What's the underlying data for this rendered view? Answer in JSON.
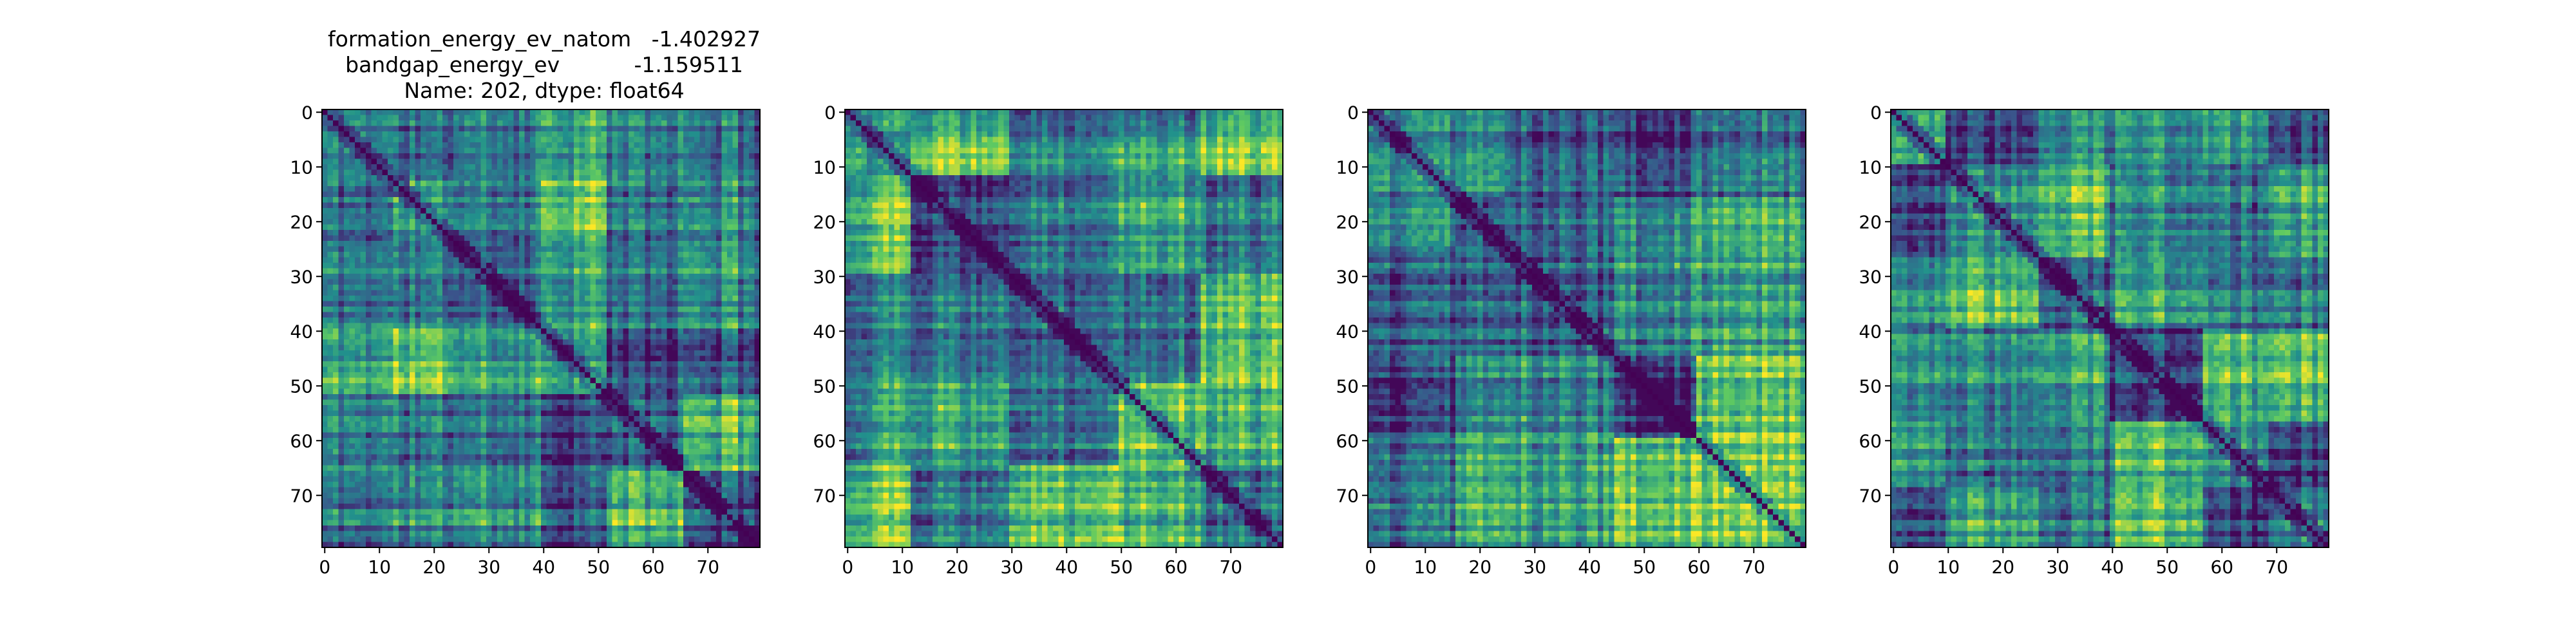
{
  "title_lines": [
    "formation_energy_ev_natom   -1.402927",
    "bandgap_energy_ev           -1.159511",
    "Name: 202, dtype: float64"
  ],
  "chart_data": [
    {
      "type": "heatmap",
      "size": 80,
      "colormap": "viridis",
      "colors": [
        "#440154",
        "#3b528b",
        "#21918c",
        "#5ec962",
        "#fde725"
      ],
      "diagonal_value": 0,
      "xticks": [
        0,
        10,
        20,
        30,
        40,
        50,
        60,
        70
      ],
      "yticks": [
        0,
        10,
        20,
        30,
        40,
        50,
        60,
        70
      ],
      "xtick_labels": [
        "0",
        "10",
        "20",
        "30",
        "40",
        "50",
        "60",
        "70"
      ],
      "ytick_labels": [
        "0",
        "10",
        "20",
        "30",
        "40",
        "50",
        "60",
        "70"
      ],
      "blocks": [
        0,
        13,
        24,
        40,
        52,
        66,
        80
      ],
      "seed": 11,
      "has_title": true
    },
    {
      "type": "heatmap",
      "size": 80,
      "colormap": "viridis",
      "colors": [
        "#440154",
        "#3b528b",
        "#21918c",
        "#5ec962",
        "#fde725"
      ],
      "diagonal_value": 0,
      "xticks": [
        0,
        10,
        20,
        30,
        40,
        50,
        60,
        70
      ],
      "yticks": [
        0,
        10,
        20,
        30,
        40,
        50,
        60,
        70
      ],
      "xtick_labels": [
        "0",
        "10",
        "20",
        "30",
        "40",
        "50",
        "60",
        "70"
      ],
      "ytick_labels": [
        "0",
        "10",
        "20",
        "30",
        "40",
        "50",
        "60",
        "70"
      ],
      "blocks": [
        0,
        4,
        12,
        30,
        50,
        65,
        80
      ],
      "seed": 29,
      "has_title": false
    },
    {
      "type": "heatmap",
      "size": 80,
      "colormap": "viridis",
      "colors": [
        "#440154",
        "#3b528b",
        "#21918c",
        "#5ec962",
        "#fde725"
      ],
      "diagonal_value": 0,
      "xticks": [
        0,
        10,
        20,
        30,
        40,
        50,
        60,
        70
      ],
      "yticks": [
        0,
        10,
        20,
        30,
        40,
        50,
        60,
        70
      ],
      "xtick_labels": [
        "0",
        "10",
        "20",
        "30",
        "40",
        "50",
        "60",
        "70"
      ],
      "ytick_labels": [
        "0",
        "10",
        "20",
        "30",
        "40",
        "50",
        "60",
        "70"
      ],
      "blocks": [
        0,
        16,
        25,
        45,
        60,
        80
      ],
      "seed": 47,
      "has_title": false
    },
    {
      "type": "heatmap",
      "size": 80,
      "colormap": "viridis",
      "colors": [
        "#440154",
        "#3b528b",
        "#21918c",
        "#5ec962",
        "#fde725"
      ],
      "diagonal_value": 0,
      "xticks": [
        0,
        10,
        20,
        30,
        40,
        50,
        60,
        70
      ],
      "yticks": [
        0,
        10,
        20,
        30,
        40,
        50,
        60,
        70
      ],
      "xtick_labels": [
        "0",
        "10",
        "20",
        "30",
        "40",
        "50",
        "60",
        "70"
      ],
      "ytick_labels": [
        "0",
        "10",
        "20",
        "30",
        "40",
        "50",
        "60",
        "70"
      ],
      "blocks": [
        0,
        10,
        27,
        40,
        57,
        69,
        80
      ],
      "seed": 83,
      "has_title": false
    }
  ]
}
